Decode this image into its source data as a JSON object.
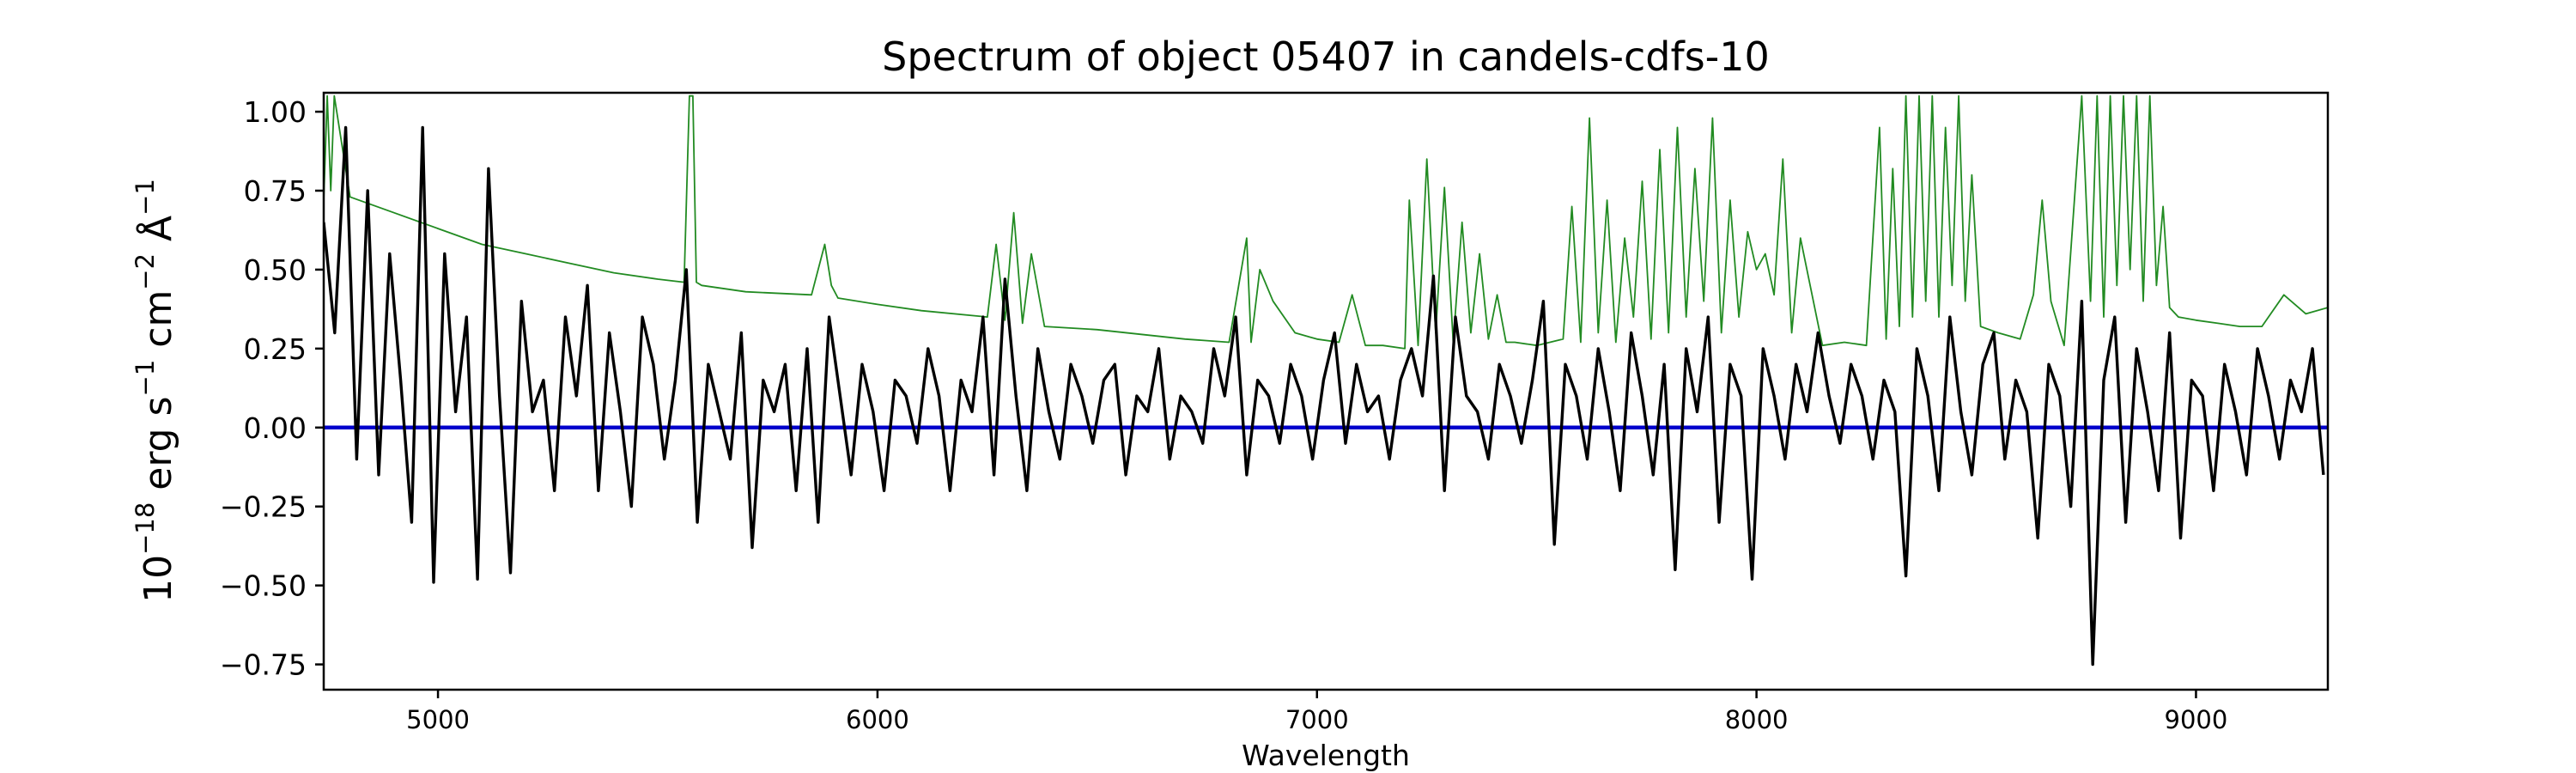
{
  "chart_data": {
    "type": "line",
    "title": "Spectrum of object 05407 in candels-cdfs-10",
    "xlabel": "Wavelength",
    "ylabel": {
      "base": "10",
      "exp1": "−18",
      "unit1": " erg s",
      "exp2": "−1",
      "unit2": " cm",
      "exp3": "−2",
      "unit3": " Å",
      "exp4": "−1"
    },
    "xlim": [
      4740,
      9300
    ],
    "ylim": [
      -0.83,
      1.06
    ],
    "x_ticks": [
      5000,
      6000,
      7000,
      8000,
      9000
    ],
    "x_tick_labels": [
      "5000",
      "6000",
      "7000",
      "8000",
      "9000"
    ],
    "y_ticks": [
      -0.75,
      -0.5,
      -0.25,
      0.0,
      0.25,
      0.5,
      0.75,
      1.0
    ],
    "y_tick_labels": [
      "−0.75",
      "−0.50",
      "−0.25",
      "0.00",
      "0.25",
      "0.50",
      "0.75",
      "1.00"
    ],
    "grid": false,
    "colors": {
      "flux": "#000000",
      "error": "#228b22",
      "zero": "#0000cc",
      "axes": "#000000"
    },
    "series": [
      {
        "role": "flux",
        "x": [
          4740,
          4765,
          4790,
          4815,
          4840,
          4865,
          4890,
          4915,
          4940,
          4965,
          4990,
          5015,
          5040,
          5065,
          5090,
          5115,
          5140,
          5165,
          5190,
          5215,
          5240,
          5265,
          5290,
          5315,
          5340,
          5365,
          5390,
          5415,
          5440,
          5465,
          5490,
          5515,
          5540,
          5565,
          5590,
          5615,
          5640,
          5665,
          5690,
          5715,
          5740,
          5765,
          5790,
          5815,
          5840,
          5865,
          5890,
          5915,
          5940,
          5965,
          5990,
          6015,
          6040,
          6065,
          6090,
          6115,
          6140,
          6165,
          6190,
          6215,
          6240,
          6265,
          6290,
          6315,
          6340,
          6365,
          6390,
          6415,
          6440,
          6465,
          6490,
          6515,
          6540,
          6565,
          6590,
          6615,
          6640,
          6665,
          6690,
          6715,
          6740,
          6765,
          6790,
          6815,
          6840,
          6865,
          6890,
          6915,
          6940,
          6965,
          6990,
          7015,
          7040,
          7065,
          7090,
          7115,
          7140,
          7165,
          7190,
          7215,
          7240,
          7265,
          7290,
          7315,
          7340,
          7365,
          7390,
          7415,
          7440,
          7465,
          7490,
          7515,
          7540,
          7565,
          7590,
          7615,
          7640,
          7665,
          7690,
          7715,
          7740,
          7765,
          7790,
          7815,
          7840,
          7865,
          7890,
          7915,
          7940,
          7965,
          7990,
          8015,
          8040,
          8065,
          8090,
          8115,
          8140,
          8165,
          8190,
          8215,
          8240,
          8265,
          8290,
          8315,
          8340,
          8365,
          8390,
          8415,
          8440,
          8465,
          8490,
          8515,
          8540,
          8565,
          8590,
          8615,
          8640,
          8665,
          8690,
          8715,
          8740,
          8765,
          8790,
          8815,
          8840,
          8865,
          8890,
          8915,
          8940,
          8965,
          8990,
          9015,
          9040,
          9065,
          9090,
          9115,
          9140,
          9165,
          9190,
          9215,
          9240,
          9265,
          9290
        ],
        "values": [
          0.65,
          0.3,
          0.95,
          -0.1,
          0.75,
          -0.15,
          0.55,
          0.15,
          -0.3,
          0.95,
          -0.49,
          0.55,
          0.05,
          0.35,
          -0.48,
          0.82,
          0.1,
          -0.46,
          0.4,
          0.05,
          0.15,
          -0.2,
          0.35,
          0.1,
          0.45,
          -0.2,
          0.3,
          0.05,
          -0.25,
          0.35,
          0.2,
          -0.1,
          0.15,
          0.5,
          -0.3,
          0.2,
          0.05,
          -0.1,
          0.3,
          -0.38,
          0.15,
          0.05,
          0.2,
          -0.2,
          0.25,
          -0.3,
          0.35,
          0.1,
          -0.15,
          0.2,
          0.05,
          -0.2,
          0.15,
          0.1,
          -0.05,
          0.25,
          0.1,
          -0.2,
          0.15,
          0.05,
          0.35,
          -0.15,
          0.47,
          0.1,
          -0.2,
          0.25,
          0.05,
          -0.1,
          0.2,
          0.1,
          -0.05,
          0.15,
          0.2,
          -0.15,
          0.1,
          0.05,
          0.25,
          -0.1,
          0.1,
          0.05,
          -0.05,
          0.25,
          0.1,
          0.35,
          -0.15,
          0.15,
          0.1,
          -0.05,
          0.2,
          0.1,
          -0.1,
          0.15,
          0.3,
          -0.05,
          0.2,
          0.05,
          0.1,
          -0.1,
          0.15,
          0.25,
          0.1,
          0.48,
          -0.2,
          0.35,
          0.1,
          0.05,
          -0.1,
          0.2,
          0.1,
          -0.05,
          0.15,
          0.4,
          -0.37,
          0.2,
          0.1,
          -0.1,
          0.25,
          0.05,
          -0.2,
          0.3,
          0.1,
          -0.15,
          0.2,
          -0.45,
          0.25,
          0.05,
          0.35,
          -0.3,
          0.2,
          0.1,
          -0.48,
          0.25,
          0.1,
          -0.1,
          0.2,
          0.05,
          0.3,
          0.1,
          -0.05,
          0.2,
          0.1,
          -0.1,
          0.15,
          0.05,
          -0.47,
          0.25,
          0.1,
          -0.2,
          0.35,
          0.05,
          -0.15,
          0.2,
          0.3,
          -0.1,
          0.15,
          0.05,
          -0.35,
          0.2,
          0.1,
          -0.25,
          0.4,
          -0.75,
          0.15,
          0.35,
          -0.3,
          0.25,
          0.05,
          -0.2,
          0.3,
          -0.35,
          0.15,
          0.1,
          -0.2,
          0.2,
          0.05,
          -0.15,
          0.25,
          0.1,
          -0.1,
          0.15,
          0.05,
          0.25,
          -0.15
        ]
      },
      {
        "role": "error",
        "x": [
          4740,
          4748,
          4756,
          4764,
          4800,
          4900,
          5000,
          5100,
          5200,
          5300,
          5400,
          5500,
          5560,
          5572,
          5580,
          5588,
          5600,
          5700,
          5850,
          5880,
          5895,
          5910,
          6000,
          6100,
          6250,
          6270,
          6290,
          6310,
          6330,
          6350,
          6380,
          6500,
          6700,
          6800,
          6840,
          6850,
          6870,
          6900,
          6950,
          7000,
          7050,
          7080,
          7110,
          7150,
          7200,
          7210,
          7230,
          7250,
          7270,
          7290,
          7310,
          7330,
          7350,
          7370,
          7390,
          7410,
          7430,
          7450,
          7500,
          7560,
          7580,
          7600,
          7620,
          7640,
          7660,
          7680,
          7700,
          7720,
          7740,
          7760,
          7780,
          7800,
          7820,
          7840,
          7860,
          7880,
          7900,
          7920,
          7940,
          7960,
          7980,
          8000,
          8020,
          8040,
          8060,
          8080,
          8100,
          8150,
          8200,
          8250,
          8280,
          8295,
          8310,
          8325,
          8340,
          8355,
          8370,
          8385,
          8400,
          8415,
          8430,
          8445,
          8460,
          8475,
          8490,
          8510,
          8550,
          8600,
          8630,
          8650,
          8670,
          8700,
          8740,
          8760,
          8775,
          8790,
          8805,
          8820,
          8835,
          8850,
          8865,
          8880,
          8895,
          8910,
          8925,
          8940,
          8960,
          9000,
          9050,
          9100,
          9150,
          9200,
          9250,
          9300
        ],
        "values": [
          0.72,
          1.05,
          0.75,
          1.05,
          0.73,
          0.68,
          0.63,
          0.58,
          0.55,
          0.52,
          0.49,
          0.47,
          0.46,
          1.05,
          1.05,
          0.46,
          0.45,
          0.43,
          0.42,
          0.58,
          0.45,
          0.41,
          0.39,
          0.37,
          0.35,
          0.58,
          0.34,
          0.68,
          0.33,
          0.55,
          0.32,
          0.31,
          0.28,
          0.27,
          0.6,
          0.27,
          0.5,
          0.4,
          0.3,
          0.28,
          0.27,
          0.42,
          0.26,
          0.26,
          0.25,
          0.72,
          0.26,
          0.85,
          0.3,
          0.76,
          0.27,
          0.65,
          0.3,
          0.55,
          0.28,
          0.42,
          0.27,
          0.27,
          0.26,
          0.28,
          0.7,
          0.27,
          0.98,
          0.3,
          0.72,
          0.27,
          0.6,
          0.35,
          0.78,
          0.28,
          0.88,
          0.3,
          0.95,
          0.35,
          0.82,
          0.4,
          0.98,
          0.3,
          0.72,
          0.35,
          0.62,
          0.5,
          0.55,
          0.42,
          0.85,
          0.3,
          0.6,
          0.26,
          0.27,
          0.26,
          0.95,
          0.28,
          0.82,
          0.32,
          1.05,
          0.35,
          1.05,
          0.4,
          1.05,
          0.35,
          0.95,
          0.45,
          1.05,
          0.4,
          0.8,
          0.32,
          0.3,
          0.28,
          0.42,
          0.72,
          0.4,
          0.26,
          1.05,
          0.4,
          1.05,
          0.35,
          1.05,
          0.45,
          1.05,
          0.5,
          1.05,
          0.4,
          1.05,
          0.45,
          0.7,
          0.38,
          0.35,
          0.34,
          0.33,
          0.32,
          0.32,
          0.42,
          0.36,
          0.38
        ]
      },
      {
        "role": "zero",
        "x": [
          4740,
          9300
        ],
        "values": [
          0.0,
          0.0
        ]
      }
    ]
  }
}
